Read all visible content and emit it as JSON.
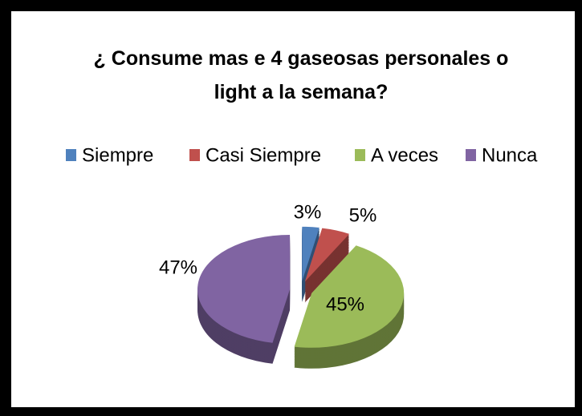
{
  "chart_data": {
    "type": "pie",
    "title": "¿ Consume mas e 4 gaseosas personales o light a la semana?",
    "categories": [
      "Siempre",
      "Casi Siempre",
      "A veces",
      "Nunca"
    ],
    "values": [
      3,
      5,
      45,
      47
    ],
    "value_labels": [
      "3%",
      "5%",
      "45%",
      "47%"
    ],
    "colors": [
      "#4f81bd",
      "#c0504d",
      "#9bbb59",
      "#8064a2"
    ],
    "legend": "top"
  }
}
